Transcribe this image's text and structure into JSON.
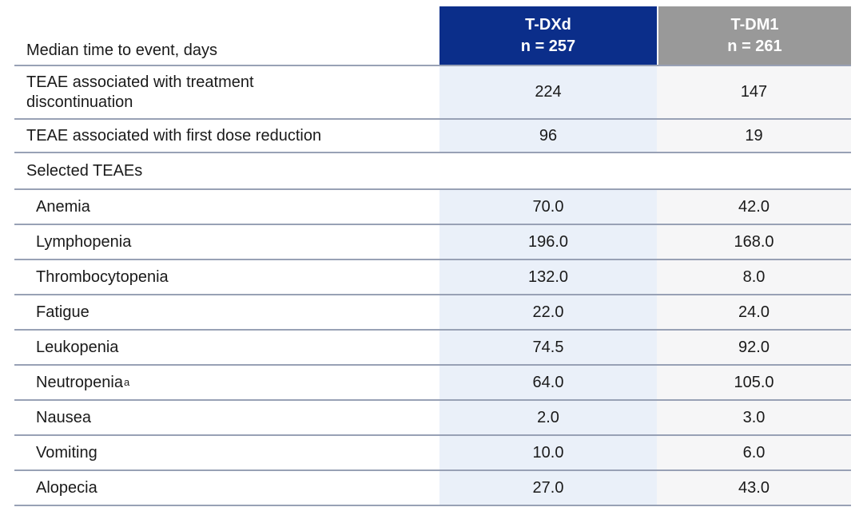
{
  "colors": {
    "header_blue": "#0b2e8a",
    "header_gray": "#999999",
    "tdxd_column_bg": "#eaf0f9",
    "tdm1_column_bg": "#f6f6f7",
    "row_border": "#98a1b5",
    "text": "#1a1a1a",
    "header_text": "#ffffff"
  },
  "table": {
    "corner_label": "Median time to event, days",
    "columns": [
      {
        "label": "T-DXd",
        "sub": "n = 257"
      },
      {
        "label": "T-DM1",
        "sub": "n = 261"
      }
    ],
    "rows": [
      {
        "label": "TEAE associated with treatment discontinuation",
        "tdxd": "224",
        "tdm1": "147"
      },
      {
        "label": "TEAE associated with first dose reduction",
        "tdxd": "96",
        "tdm1": "19"
      },
      {
        "label": "Selected TEAEs",
        "tdxd": "",
        "tdm1": ""
      },
      {
        "label": "Anemia",
        "tdxd": "70.0",
        "tdm1": "42.0"
      },
      {
        "label": "Lymphopenia",
        "tdxd": "196.0",
        "tdm1": "168.0"
      },
      {
        "label": "Thrombocytopenia",
        "tdxd": "132.0",
        "tdm1": "8.0"
      },
      {
        "label": "Fatigue",
        "tdxd": "22.0",
        "tdm1": "24.0"
      },
      {
        "label": "Leukopenia",
        "tdxd": "74.5",
        "tdm1": "92.0"
      },
      {
        "label": "Neutropenia",
        "sup": "a",
        "tdxd": "64.0",
        "tdm1": "105.0"
      },
      {
        "label": "Nausea",
        "tdxd": "2.0",
        "tdm1": "3.0"
      },
      {
        "label": "Vomiting",
        "tdxd": "10.0",
        "tdm1": "6.0"
      },
      {
        "label": "Alopecia",
        "tdxd": "27.0",
        "tdm1": "43.0"
      }
    ]
  },
  "chart_data": {
    "type": "table",
    "title": "Median time to event, days",
    "columns": [
      "T-DXd n = 257",
      "T-DM1 n = 261"
    ],
    "rows": [
      [
        "TEAE associated with treatment discontinuation",
        224,
        147
      ],
      [
        "TEAE associated with first dose reduction",
        96,
        19
      ],
      [
        "Anemia",
        70.0,
        42.0
      ],
      [
        "Lymphopenia",
        196.0,
        168.0
      ],
      [
        "Thrombocytopenia",
        132.0,
        8.0
      ],
      [
        "Fatigue",
        22.0,
        24.0
      ],
      [
        "Leukopenia",
        74.5,
        92.0
      ],
      [
        "Neutropenia (a)",
        64.0,
        105.0
      ],
      [
        "Nausea",
        2.0,
        3.0
      ],
      [
        "Vomiting",
        10.0,
        6.0
      ],
      [
        "Alopecia",
        27.0,
        43.0
      ]
    ]
  }
}
